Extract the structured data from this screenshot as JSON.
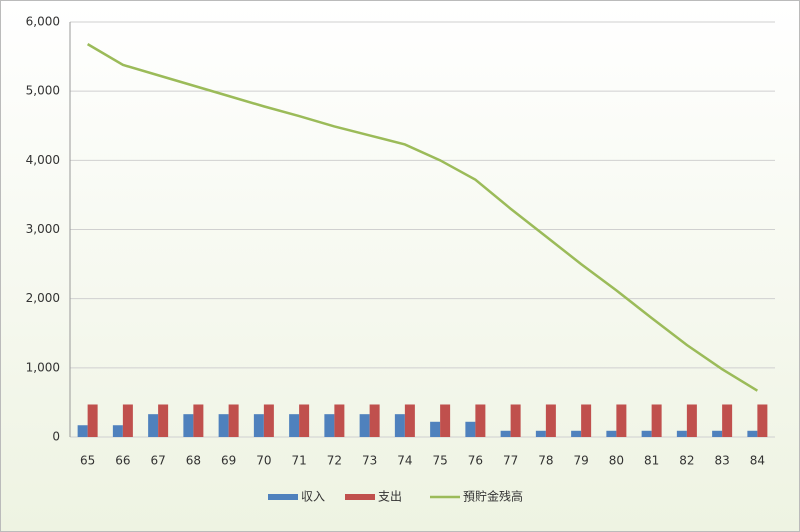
{
  "chart_data": {
    "type": "bar",
    "categories": [
      "65",
      "66",
      "67",
      "68",
      "69",
      "70",
      "71",
      "72",
      "73",
      "74",
      "75",
      "76",
      "77",
      "78",
      "79",
      "80",
      "81",
      "82",
      "83",
      "84"
    ],
    "series": [
      {
        "name": "収入",
        "type": "bar",
        "color": "#4f81bd",
        "values": [
          170,
          170,
          330,
          330,
          330,
          330,
          330,
          330,
          330,
          330,
          220,
          220,
          90,
          90,
          90,
          90,
          90,
          90,
          90,
          90
        ]
      },
      {
        "name": "支出",
        "type": "bar",
        "color": "#c0504d",
        "values": [
          470,
          470,
          470,
          470,
          470,
          470,
          470,
          470,
          470,
          470,
          470,
          470,
          470,
          470,
          470,
          470,
          470,
          470,
          470,
          470
        ]
      },
      {
        "name": "預貯金残高",
        "type": "line",
        "color": "#9bbb59",
        "values": [
          5680,
          5380,
          5230,
          5080,
          4930,
          4780,
          4640,
          4490,
          4360,
          4230,
          4000,
          3720,
          3300,
          2900,
          2500,
          2120,
          1720,
          1330,
          980,
          670
        ]
      }
    ],
    "ylim": [
      0,
      6000
    ],
    "yticks": [
      0,
      {
        "value": 1000,
        "label": "1,000"
      },
      {
        "value": 2000,
        "label": "2,000"
      },
      {
        "value": 3000,
        "label": "3,000"
      },
      {
        "value": 4000,
        "label": "4,000"
      },
      {
        "value": 5000,
        "label": "5,000"
      },
      {
        "value": 6000,
        "label": "6,000"
      }
    ],
    "grid": true,
    "legend": "bottom"
  }
}
